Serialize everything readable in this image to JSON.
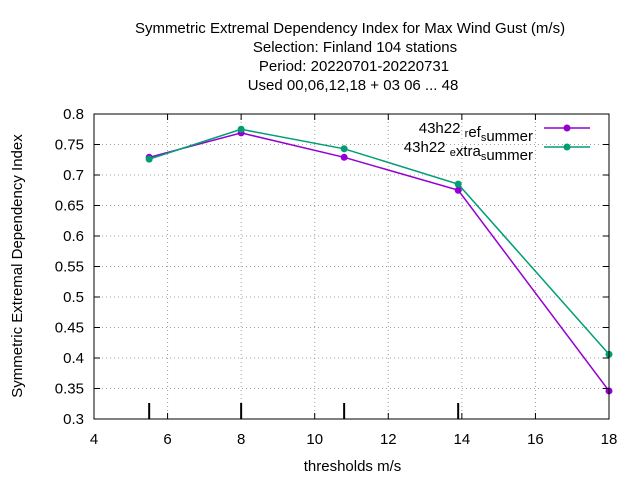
{
  "chart_data": {
    "type": "line",
    "title_lines": [
      "Symmetric Extremal Dependency Index  for Max Wind Gust (m/s)",
      "Selection: Finland    104 stations",
      "Period: 20220701-20220731",
      "Used  00,06,12,18  + 03 06 ... 48"
    ],
    "xlabel": "thresholds m/s",
    "ylabel": "Symmetric Extremal Dependency Index",
    "xlim": [
      4,
      18
    ],
    "ylim": [
      0.3,
      0.8
    ],
    "xticks": [
      4,
      6,
      8,
      10,
      12,
      14,
      16,
      18
    ],
    "xtick_labels": [
      "4",
      "6",
      "8",
      "10",
      "12",
      "14",
      "16",
      "18"
    ],
    "yticks": [
      0.3,
      0.35,
      0.4,
      0.45,
      0.5,
      0.55,
      0.6,
      0.65,
      0.7,
      0.75,
      0.8
    ],
    "ytick_labels": [
      "0.3",
      "0.35",
      "0.4",
      "0.45",
      "0.5",
      "0.55",
      "0.6",
      "0.65",
      "0.7",
      "0.75",
      "0.8"
    ],
    "grid": true,
    "legend_position": "top-right",
    "threshold_markers": [
      5.5,
      8,
      10.8,
      13.9
    ],
    "series": [
      {
        "name": "43h22 _ref_summer",
        "legend": {
          "main1": "43h22 ",
          "sub1": "r",
          "main2": "ef",
          "sub2": "s",
          "main3": "ummer"
        },
        "color": "#9400d3",
        "x": [
          5.5,
          8,
          10.8,
          13.9,
          18
        ],
        "y": [
          0.729,
          0.769,
          0.729,
          0.675,
          0.346
        ]
      },
      {
        "name": "43h22 _extra_summer",
        "legend": {
          "main1": "43h22 ",
          "sub1": "e",
          "main2": "xtra",
          "sub2": "s",
          "main3": "ummer"
        },
        "color": "#009e73",
        "x": [
          5.5,
          8,
          10.8,
          13.9,
          18
        ],
        "y": [
          0.726,
          0.775,
          0.743,
          0.685,
          0.406
        ]
      }
    ]
  }
}
